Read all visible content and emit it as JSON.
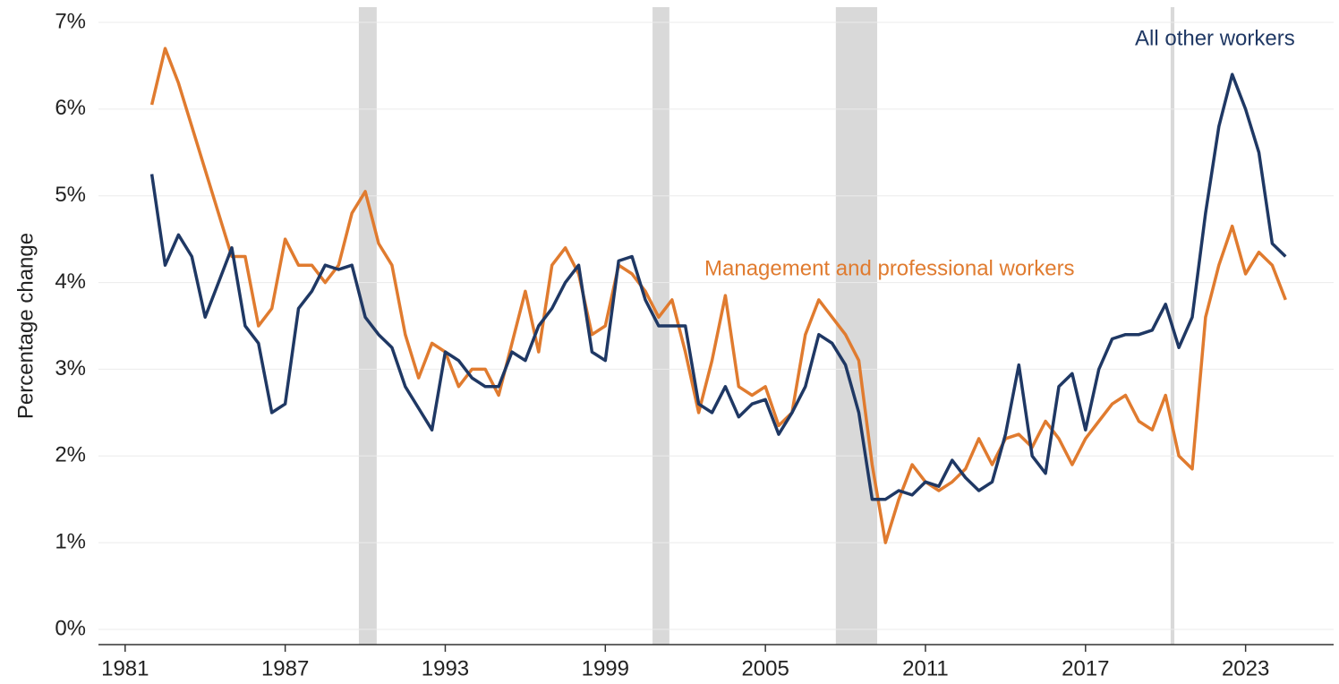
{
  "chart_data": {
    "type": "line",
    "ylabel": "Percentage change",
    "x": [
      1982,
      1982.5,
      1983,
      1983.5,
      1984,
      1984.5,
      1985,
      1985.5,
      1986,
      1986.5,
      1987,
      1987.5,
      1988,
      1988.5,
      1989,
      1989.5,
      1990,
      1990.5,
      1991,
      1991.5,
      1992,
      1992.5,
      1993,
      1993.5,
      1994,
      1994.5,
      1995,
      1995.5,
      1996,
      1996.5,
      1997,
      1997.5,
      1998,
      1998.5,
      1999,
      1999.5,
      2000,
      2000.5,
      2001,
      2001.5,
      2002,
      2002.5,
      2003,
      2003.5,
      2004,
      2004.5,
      2005,
      2005.5,
      2006,
      2006.5,
      2007,
      2007.5,
      2008,
      2008.5,
      2009,
      2009.5,
      2010,
      2010.5,
      2011,
      2011.5,
      2012,
      2012.5,
      2013,
      2013.5,
      2014,
      2014.5,
      2015,
      2015.5,
      2016,
      2016.5,
      2017,
      2017.5,
      2018,
      2018.5,
      2019,
      2019.5,
      2020,
      2020.5,
      2021,
      2021.5,
      2022,
      2022.5,
      2023,
      2023.5,
      2024,
      2024.5
    ],
    "series": [
      {
        "name": "All other workers",
        "color": "#1f3864",
        "values": [
          5.25,
          4.2,
          4.55,
          4.3,
          3.6,
          4.0,
          4.4,
          3.5,
          3.3,
          2.5,
          2.6,
          3.7,
          3.9,
          4.2,
          4.15,
          4.2,
          3.6,
          3.4,
          3.25,
          2.8,
          2.55,
          2.3,
          3.2,
          3.1,
          2.9,
          2.8,
          2.8,
          3.2,
          3.1,
          3.5,
          3.7,
          4.0,
          4.2,
          3.2,
          3.1,
          4.25,
          4.3,
          3.8,
          3.5,
          3.5,
          3.5,
          2.6,
          2.5,
          2.8,
          2.45,
          2.6,
          2.65,
          2.25,
          2.5,
          2.8,
          3.4,
          3.3,
          3.05,
          2.5,
          1.5,
          1.5,
          1.6,
          1.55,
          1.7,
          1.65,
          1.95,
          1.75,
          1.6,
          1.7,
          2.25,
          3.05,
          2.0,
          1.8,
          2.8,
          2.95,
          2.3,
          3.0,
          3.35,
          3.4,
          3.4,
          3.45,
          3.75,
          3.25,
          3.6,
          4.8,
          5.8,
          6.4,
          6.0,
          5.5,
          4.45,
          4.3
        ]
      },
      {
        "name": "Management and professional workers",
        "color": "#e07b2f",
        "values": [
          6.05,
          6.7,
          6.3,
          5.8,
          5.3,
          4.8,
          4.3,
          4.3,
          3.5,
          3.7,
          4.5,
          4.2,
          4.2,
          4.0,
          4.2,
          4.8,
          5.05,
          4.45,
          4.2,
          3.4,
          2.9,
          3.3,
          3.2,
          2.8,
          3.0,
          3.0,
          2.7,
          3.3,
          3.9,
          3.2,
          4.2,
          4.4,
          4.1,
          3.4,
          3.5,
          4.2,
          4.1,
          3.9,
          3.6,
          3.8,
          3.2,
          2.5,
          3.1,
          3.85,
          2.8,
          2.7,
          2.8,
          2.35,
          2.5,
          3.4,
          3.8,
          3.6,
          3.4,
          3.1,
          1.9,
          1.0,
          1.5,
          1.9,
          1.7,
          1.6,
          1.7,
          1.85,
          2.2,
          1.9,
          2.2,
          2.25,
          2.1,
          2.4,
          2.2,
          1.9,
          2.2,
          2.4,
          2.6,
          2.7,
          2.4,
          2.3,
          2.7,
          2.0,
          1.85,
          3.6,
          4.2,
          4.65,
          4.1,
          4.35,
          4.2,
          3.8
        ]
      }
    ],
    "shaded_periods": [
      [
        1989.76,
        1990.43
      ],
      [
        2000.77,
        2001.4
      ],
      [
        2007.64,
        2009.19
      ],
      [
        2020.19,
        2020.33
      ]
    ],
    "xlim": [
      1980,
      2026.3
    ],
    "xticks": [
      1981,
      1987,
      1993,
      1999,
      2005,
      2011,
      2017,
      2023
    ],
    "ylim": [
      0,
      7
    ],
    "yticks": [
      {
        "value": 0,
        "label": "0%"
      },
      {
        "value": 1,
        "label": "1%"
      },
      {
        "value": 2,
        "label": "2%"
      },
      {
        "value": 3,
        "label": "3%"
      },
      {
        "value": 4,
        "label": "4%"
      },
      {
        "value": 5,
        "label": "5%"
      },
      {
        "value": 6,
        "label": "6%"
      },
      {
        "value": 7,
        "label": "7%"
      }
    ],
    "grid": true
  }
}
